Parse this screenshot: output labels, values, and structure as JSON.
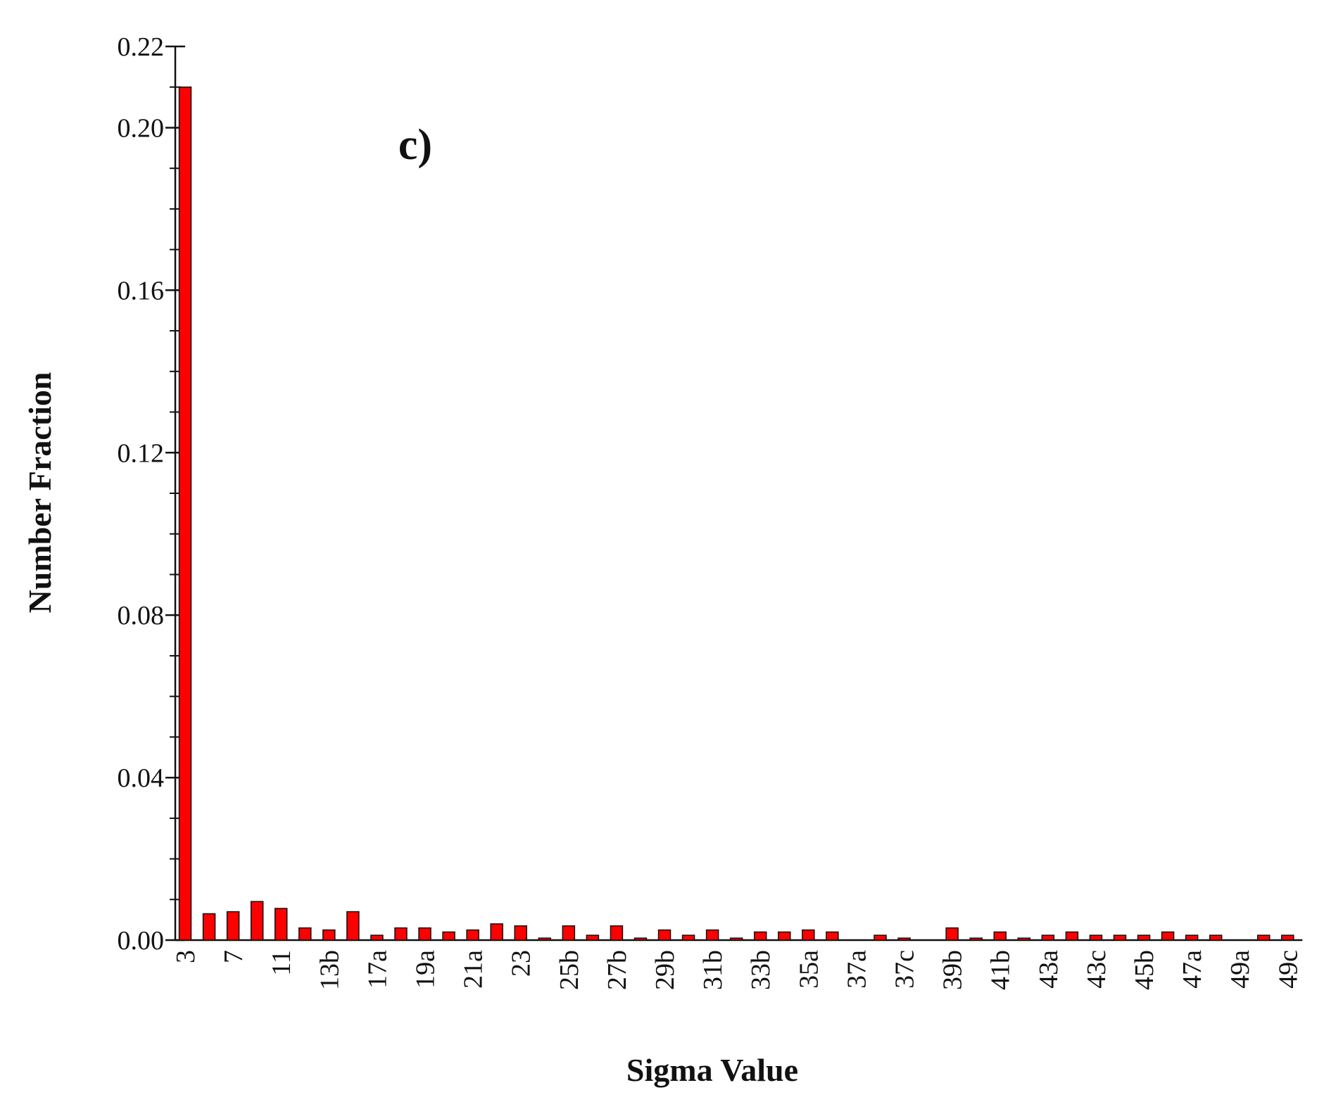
{
  "chart_data": {
    "type": "bar",
    "annotation": "c)",
    "x_label": "Sigma Value",
    "y_label": "Number Fraction",
    "categories": [
      "3",
      null,
      "7",
      null,
      "11",
      null,
      "13b",
      null,
      "17a",
      null,
      "19a",
      null,
      "21a",
      null,
      "23",
      null,
      "25b",
      null,
      "27b",
      null,
      "29b",
      null,
      "31b",
      null,
      "33b",
      null,
      "35a",
      null,
      "37a",
      null,
      "37c",
      null,
      "39b",
      null,
      "41b",
      null,
      "43a",
      null,
      "43c",
      null,
      "45b",
      null,
      "47a",
      null,
      "49a",
      null,
      "49c"
    ],
    "values": [
      0.21,
      0.0065,
      0.007,
      0.0095,
      0.0078,
      0.003,
      0.0025,
      0.007,
      0.0012,
      0.003,
      0.003,
      0.002,
      0.0025,
      0.004,
      0.0035,
      0.0005,
      0.0035,
      0.0012,
      0.0035,
      0.0005,
      0.0025,
      0.0012,
      0.0025,
      0.0005,
      0.002,
      0.002,
      0.0025,
      0.002,
      0,
      0.0012,
      0.0005,
      0,
      0.003,
      0.0005,
      0.002,
      0.0005,
      0.0012,
      0.002,
      0.0012,
      0.0012,
      0.0012,
      0.002,
      0.0012,
      0.0012,
      0,
      0.0012,
      0.0012
    ],
    "color": "#ff0000",
    "ylim": [
      0,
      0.22
    ],
    "yticks": [
      {
        "value": 0,
        "label": "0.00"
      },
      0.04,
      0.08,
      0.12,
      0.16,
      {
        "value": 0.2,
        "label": "0.20"
      },
      0.22
    ],
    "yticks_minor": [
      0.01,
      0.02,
      0.03,
      0.05,
      0.06,
      0.07,
      0.09,
      0.1,
      0.11,
      0.13,
      0.14,
      0.15,
      0.17,
      0.18,
      0.19,
      0.21
    ],
    "grid": false
  }
}
